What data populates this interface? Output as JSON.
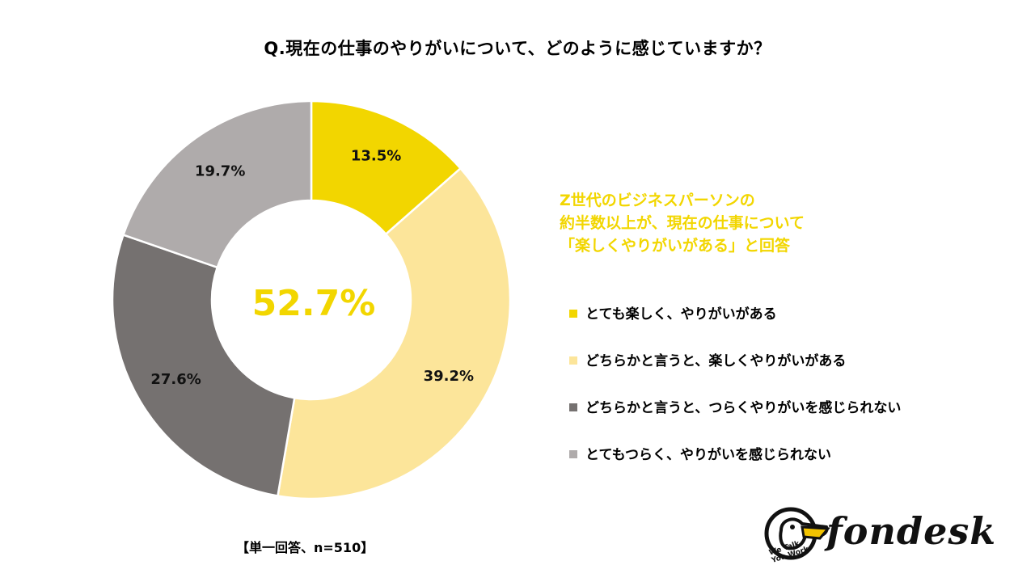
{
  "title": "Q.現在の仕事のやりがいについて、どのように感じていますか？",
  "chart_data": {
    "type": "pie",
    "variant": "donut",
    "title": "Q.現在の仕事のやりがいについて、どのように感じていますか？",
    "categories": [
      "とても楽しく、やりがいがある",
      "どちらかと言うと、楽しくやりがいがある",
      "どちらかと言うと、つらくやりがいを感じられない",
      "とてもつらく、やりがいを感じられない"
    ],
    "values": [
      13.5,
      39.2,
      27.6,
      19.7
    ],
    "value_labels": [
      "13.5%",
      "39.2%",
      "27.6%",
      "19.7%"
    ],
    "colors": [
      "#F2D600",
      "#FCE59A",
      "#757170",
      "#AFABAB"
    ],
    "center_label": "52.7%",
    "center_label_color": "#F2D600",
    "start": "top",
    "direction": "clockwise",
    "legend_position": "right"
  },
  "headline": {
    "lines": [
      "Z世代のビジネスパーソンの",
      "約半数以上が、現在の仕事について",
      "「楽しくやりがいがある」と回答"
    ],
    "color": "#F2D600"
  },
  "note": "【単一回答、n=510】",
  "logo": {
    "wordmark": "fondesk",
    "tagline_line1": "We Talk,",
    "tagline_line2": "You Work."
  }
}
